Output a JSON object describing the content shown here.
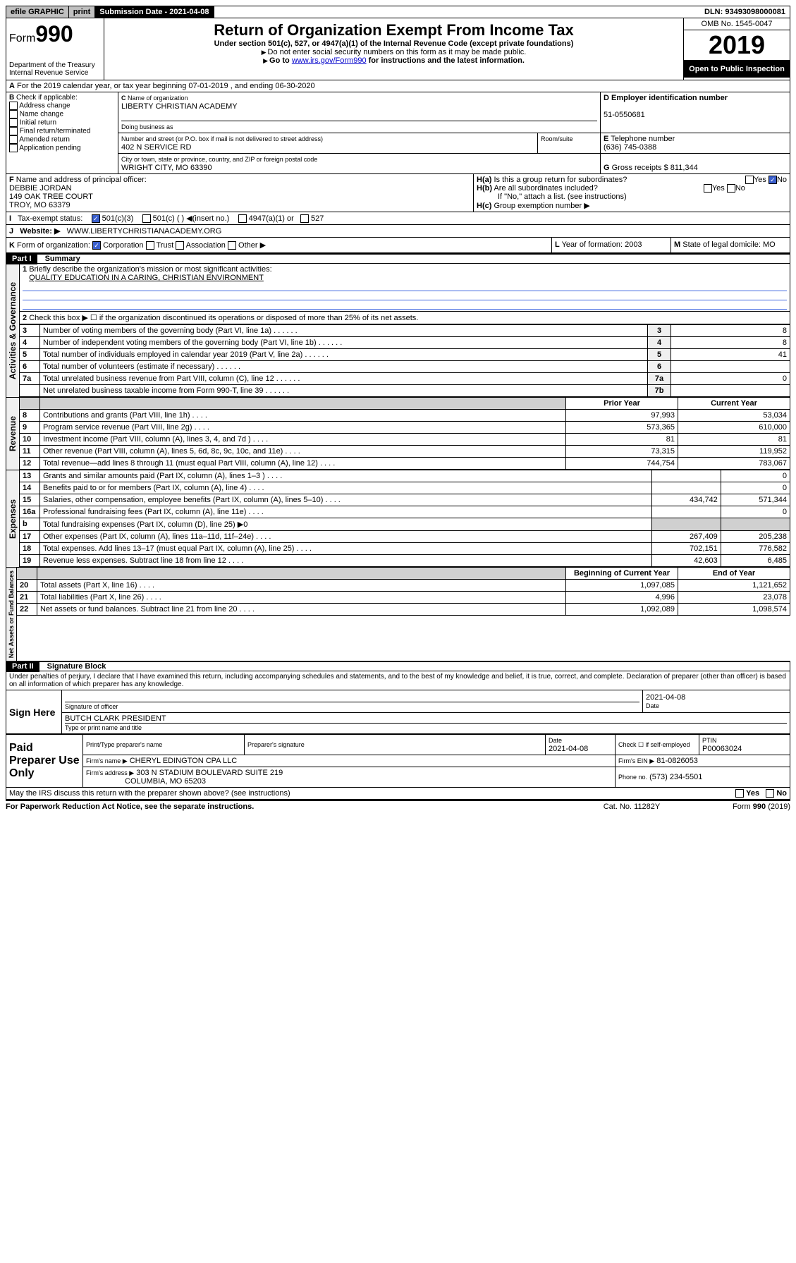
{
  "top": {
    "efile": "efile GRAPHIC",
    "print": "print",
    "submission_label": "Submission Date - 2021-04-08",
    "dln": "DLN: 93493098000081"
  },
  "header": {
    "form_prefix": "Form",
    "form_number": "990",
    "title": "Return of Organization Exempt From Income Tax",
    "subtitle": "Under section 501(c), 527, or 4947(a)(1) of the Internal Revenue Code (except private foundations)",
    "warning": "Do not enter social security numbers on this form as it may be made public.",
    "goto": "Go to ",
    "goto_link": "www.irs.gov/Form990",
    "goto_suffix": " for instructions and the latest information.",
    "dept": "Department of the Treasury\nInternal Revenue Service",
    "omb": "OMB No. 1545-0047",
    "year": "2019",
    "open": "Open to Public Inspection"
  },
  "A": {
    "text": "For the 2019 calendar year, or tax year beginning 07-01-2019   , and ending 06-30-2020"
  },
  "B": {
    "label": "Check if applicable:",
    "items": [
      "Address change",
      "Name change",
      "Initial return",
      "Final return/terminated",
      "Amended return",
      "Application pending"
    ]
  },
  "C": {
    "name_label": "Name of organization",
    "name": "LIBERTY CHRISTIAN ACADEMY",
    "dba_label": "Doing business as",
    "dba": "",
    "street_label": "Number and street (or P.O. box if mail is not delivered to street address)",
    "street": "402 N SERVICE RD",
    "room_label": "Room/suite",
    "city_label": "City or town, state or province, country, and ZIP or foreign postal code",
    "city": "WRIGHT CITY, MO  63390"
  },
  "D": {
    "label": "Employer identification number",
    "value": "51-0550681"
  },
  "E": {
    "label": "Telephone number",
    "value": "(636) 745-0388"
  },
  "G": {
    "label": "Gross receipts $",
    "value": "811,344"
  },
  "F": {
    "label": "Name and address of principal officer:",
    "name": "DEBBIE JORDAN",
    "addr1": "149 OAK TREE COURT",
    "addr2": "TROY, MO  63379"
  },
  "H": {
    "a": "Is this a group return for subordinates?",
    "b": "Are all subordinates included?",
    "b_note": "If \"No,\" attach a list. (see instructions)",
    "c": "Group exemption number ▶"
  },
  "I": {
    "label": "Tax-exempt status:",
    "opt1": "501(c)(3)",
    "opt2": "501(c) (  ) ◀(insert no.)",
    "opt3": "4947(a)(1) or",
    "opt4": "527"
  },
  "J": {
    "label": "Website: ▶",
    "value": "WWW.LIBERTYCHRISTIANACADEMY.ORG"
  },
  "K": {
    "label": "Form of organization:",
    "opts": [
      "Corporation",
      "Trust",
      "Association",
      "Other ▶"
    ]
  },
  "L": {
    "label": "Year of formation:",
    "value": "2003"
  },
  "M": {
    "label": "State of legal domicile:",
    "value": "MO"
  },
  "part1": {
    "header": "Part I",
    "title": "Summary",
    "line1_label": "Briefly describe the organization's mission or most significant activities:",
    "line1_text": "QUALITY EDUCATION IN A CARING, CHRISTIAN ENVIRONMENT",
    "line2": "Check this box ▶ ☐  if the organization discontinued its operations or disposed of more than 25% of its net assets.",
    "sections": {
      "governance": "Activities & Governance",
      "revenue": "Revenue",
      "expenses": "Expenses",
      "netassets": "Net Assets or Fund Balances"
    },
    "col_prior": "Prior Year",
    "col_current": "Current Year",
    "col_boy": "Beginning of Current Year",
    "col_eoy": "End of Year",
    "rows_gov": [
      {
        "n": "3",
        "label": "Number of voting members of the governing body (Part VI, line 1a)",
        "box": "3",
        "val": "8"
      },
      {
        "n": "4",
        "label": "Number of independent voting members of the governing body (Part VI, line 1b)",
        "box": "4",
        "val": "8"
      },
      {
        "n": "5",
        "label": "Total number of individuals employed in calendar year 2019 (Part V, line 2a)",
        "box": "5",
        "val": "41"
      },
      {
        "n": "6",
        "label": "Total number of volunteers (estimate if necessary)",
        "box": "6",
        "val": ""
      },
      {
        "n": "7a",
        "label": "Total unrelated business revenue from Part VIII, column (C), line 12",
        "box": "7a",
        "val": "0"
      },
      {
        "n": "",
        "label": "Net unrelated business taxable income from Form 990-T, line 39",
        "box": "7b",
        "val": ""
      }
    ],
    "rows_rev": [
      {
        "n": "8",
        "label": "Contributions and grants (Part VIII, line 1h)",
        "prior": "97,993",
        "curr": "53,034"
      },
      {
        "n": "9",
        "label": "Program service revenue (Part VIII, line 2g)",
        "prior": "573,365",
        "curr": "610,000"
      },
      {
        "n": "10",
        "label": "Investment income (Part VIII, column (A), lines 3, 4, and 7d )",
        "prior": "81",
        "curr": "81"
      },
      {
        "n": "11",
        "label": "Other revenue (Part VIII, column (A), lines 5, 6d, 8c, 9c, 10c, and 11e)",
        "prior": "73,315",
        "curr": "119,952"
      },
      {
        "n": "12",
        "label": "Total revenue—add lines 8 through 11 (must equal Part VIII, column (A), line 12)",
        "prior": "744,754",
        "curr": "783,067"
      }
    ],
    "rows_exp": [
      {
        "n": "13",
        "label": "Grants and similar amounts paid (Part IX, column (A), lines 1–3 )",
        "prior": "",
        "curr": "0"
      },
      {
        "n": "14",
        "label": "Benefits paid to or for members (Part IX, column (A), line 4)",
        "prior": "",
        "curr": "0"
      },
      {
        "n": "15",
        "label": "Salaries, other compensation, employee benefits (Part IX, column (A), lines 5–10)",
        "prior": "434,742",
        "curr": "571,344"
      },
      {
        "n": "16a",
        "label": "Professional fundraising fees (Part IX, column (A), line 11e)",
        "prior": "",
        "curr": "0"
      },
      {
        "n": "b",
        "label": "Total fundraising expenses (Part IX, column (D), line 25) ▶0",
        "prior": "",
        "curr": "",
        "shade": true
      },
      {
        "n": "17",
        "label": "Other expenses (Part IX, column (A), lines 11a–11d, 11f–24e)",
        "prior": "267,409",
        "curr": "205,238"
      },
      {
        "n": "18",
        "label": "Total expenses. Add lines 13–17 (must equal Part IX, column (A), line 25)",
        "prior": "702,151",
        "curr": "776,582"
      },
      {
        "n": "19",
        "label": "Revenue less expenses. Subtract line 18 from line 12",
        "prior": "42,603",
        "curr": "6,485"
      }
    ],
    "rows_net": [
      {
        "n": "20",
        "label": "Total assets (Part X, line 16)",
        "prior": "1,097,085",
        "curr": "1,121,652"
      },
      {
        "n": "21",
        "label": "Total liabilities (Part X, line 26)",
        "prior": "4,996",
        "curr": "23,078"
      },
      {
        "n": "22",
        "label": "Net assets or fund balances. Subtract line 21 from line 20",
        "prior": "1,092,089",
        "curr": "1,098,574"
      }
    ]
  },
  "part2": {
    "header": "Part II",
    "title": "Signature Block",
    "declaration": "Under penalties of perjury, I declare that I have examined this return, including accompanying schedules and statements, and to the best of my knowledge and belief, it is true, correct, and complete. Declaration of preparer (other than officer) is based on all information of which preparer has any knowledge.",
    "sign_here": "Sign Here",
    "sig_officer": "Signature of officer",
    "sig_date": "2021-04-08",
    "date_label": "Date",
    "officer_name": "BUTCH CLARK PRESIDENT",
    "officer_name_label": "Type or print name and title",
    "paid": "Paid Preparer Use Only",
    "prep_name_label": "Print/Type preparer's name",
    "prep_sig_label": "Preparer's signature",
    "prep_date": "2021-04-08",
    "check_label": "Check ☐ if self-employed",
    "ptin_label": "PTIN",
    "ptin": "P00063024",
    "firm_name_label": "Firm's name   ▶",
    "firm_name": "CHERYL EDINGTON CPA LLC",
    "firm_ein_label": "Firm's EIN ▶",
    "firm_ein": "81-0826053",
    "firm_addr_label": "Firm's address ▶",
    "firm_addr1": "303 N STADIUM BOULEVARD SUITE 219",
    "firm_addr2": "COLUMBIA, MO  65203",
    "phone_label": "Phone no.",
    "phone": "(573) 234-5501"
  },
  "footer": {
    "discuss": "May the IRS discuss this return with the preparer shown above? (see instructions)",
    "paperwork": "For Paperwork Reduction Act Notice, see the separate instructions.",
    "catno": "Cat. No. 11282Y",
    "formno": "Form 990 (2019)"
  }
}
